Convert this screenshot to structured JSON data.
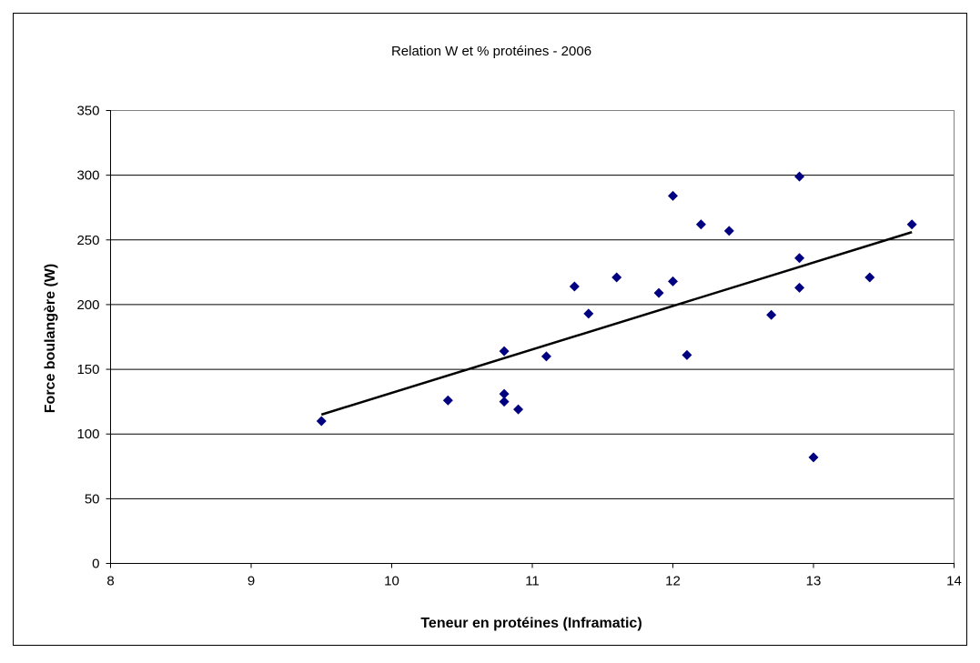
{
  "chart_data": {
    "type": "scatter",
    "title": "Relation W et % protéines - 2006",
    "xlabel": "Teneur en protéines (Inframatic)",
    "ylabel": "Force boulangère (W)",
    "xlim": [
      8,
      14
    ],
    "ylim": [
      0,
      350
    ],
    "x_ticks": [
      8,
      9,
      10,
      11,
      12,
      13,
      14
    ],
    "y_ticks": [
      0,
      50,
      100,
      150,
      200,
      250,
      300,
      350
    ],
    "grid": "horizontal",
    "legend": "none",
    "marker_color": "#000080",
    "trendline_color": "#000000",
    "series": [
      {
        "points": [
          {
            "x": 9.5,
            "y": 110
          },
          {
            "x": 10.4,
            "y": 126
          },
          {
            "x": 10.8,
            "y": 164
          },
          {
            "x": 10.8,
            "y": 131
          },
          {
            "x": 10.8,
            "y": 125
          },
          {
            "x": 10.9,
            "y": 119
          },
          {
            "x": 11.1,
            "y": 160
          },
          {
            "x": 11.3,
            "y": 214
          },
          {
            "x": 11.4,
            "y": 193
          },
          {
            "x": 11.6,
            "y": 221
          },
          {
            "x": 11.9,
            "y": 209
          },
          {
            "x": 12.0,
            "y": 284
          },
          {
            "x": 12.0,
            "y": 218
          },
          {
            "x": 12.1,
            "y": 161
          },
          {
            "x": 12.2,
            "y": 262
          },
          {
            "x": 12.4,
            "y": 257
          },
          {
            "x": 12.7,
            "y": 192
          },
          {
            "x": 12.9,
            "y": 299
          },
          {
            "x": 12.9,
            "y": 236
          },
          {
            "x": 12.9,
            "y": 213
          },
          {
            "x": 13.0,
            "y": 82
          },
          {
            "x": 13.4,
            "y": 221
          },
          {
            "x": 13.7,
            "y": 262
          }
        ]
      }
    ],
    "trendline": {
      "type": "linear",
      "from": {
        "x": 9.5,
        "y": 115
      },
      "to": {
        "x": 13.7,
        "y": 256
      }
    }
  }
}
